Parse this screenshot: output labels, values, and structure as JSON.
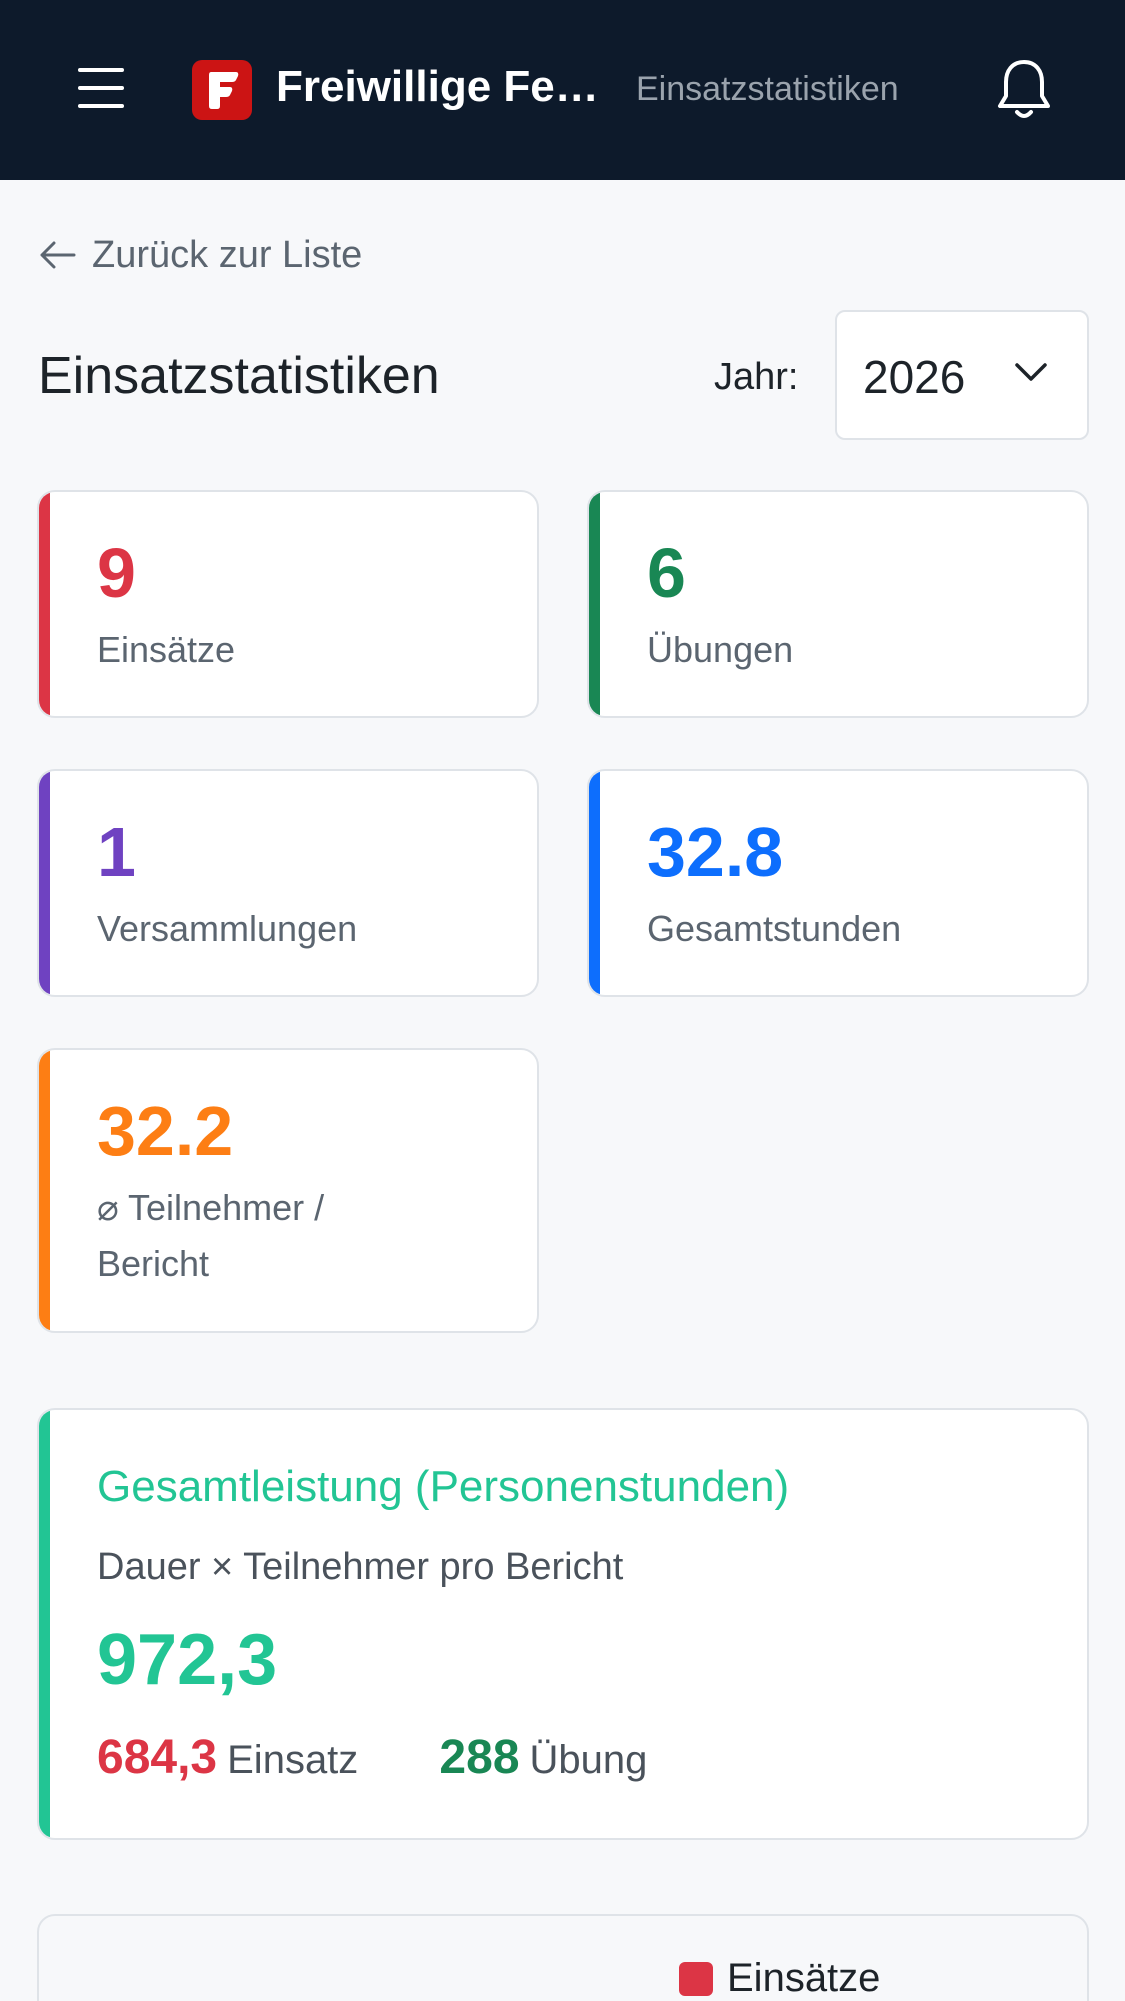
{
  "header": {
    "app_title": "Freiwillige Feuerwehr",
    "page_name": "Einsatzstatistiken",
    "logo_letter": "F",
    "colors": {
      "background": "#0d1a2b",
      "logo": "#cc1414"
    }
  },
  "back_link": {
    "label": "Zurück zur Liste"
  },
  "page": {
    "title": "Einsatzstatistiken",
    "year_label": "Jahr:",
    "year_selected": "2026"
  },
  "stats": [
    {
      "value": "9",
      "label": "Einsätze",
      "color": "#dc3545"
    },
    {
      "value": "6",
      "label": "Übungen",
      "color": "#198754"
    },
    {
      "value": "1",
      "label": "Versammlungen",
      "color": "#6f42c1"
    },
    {
      "value": "32.8",
      "label": "Gesamtstunden",
      "color": "#0d6efd"
    },
    {
      "value": "32.2",
      "label": "⌀ Teilnehmer / Bericht",
      "color": "#fd7e14"
    }
  ],
  "summary": {
    "title": "Gesamtleistung (Personenstunden)",
    "subtitle": "Dauer × Teilnehmer pro Bericht",
    "total": "972,3",
    "einsatz_value": "684,3",
    "einsatz_label": "Einsatz",
    "uebung_value": "288",
    "uebung_label": "Übung",
    "color": "#22c594"
  },
  "chart_legend": {
    "einsaetze_label": "Einsätze",
    "einsaetze_color": "#dc3545"
  }
}
